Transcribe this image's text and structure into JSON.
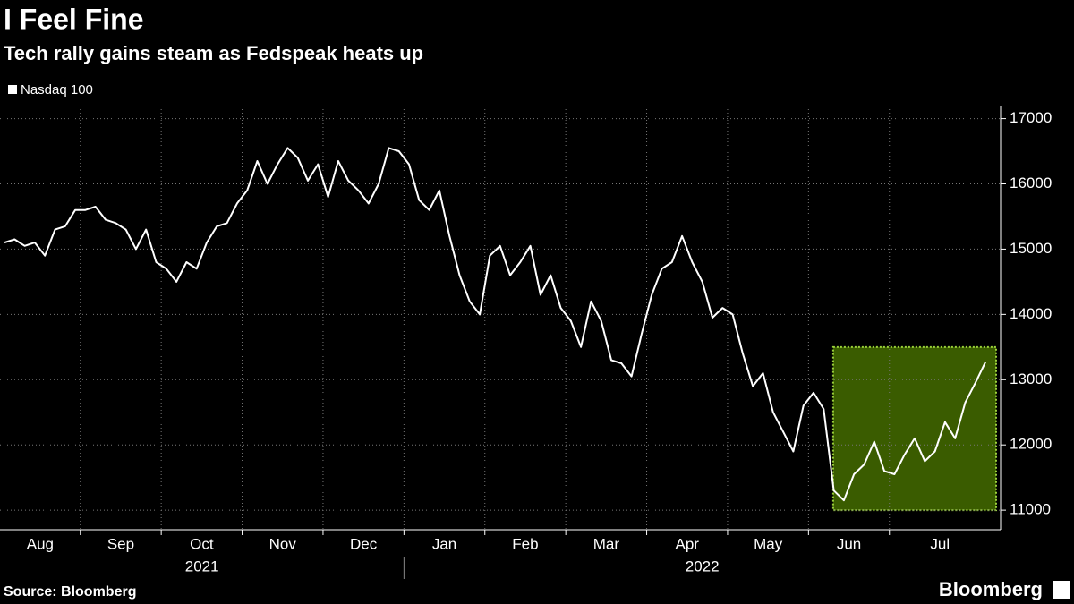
{
  "chart_data": {
    "type": "line",
    "title": "I Feel Fine",
    "subtitle": "Tech rally gains steam as Fedspeak heats up",
    "source": "Source: Bloomberg",
    "brand": "Bloomberg",
    "years": [
      "2021",
      "2022"
    ],
    "categories": [
      "Aug",
      null,
      null,
      null,
      null,
      null,
      null,
      null,
      "Sep",
      null,
      null,
      null,
      null,
      null,
      null,
      null,
      "Oct",
      null,
      null,
      null,
      null,
      null,
      null,
      null,
      "Nov",
      null,
      null,
      null,
      null,
      null,
      null,
      null,
      "Dec",
      null,
      null,
      null,
      null,
      null,
      null,
      null,
      "Jan",
      null,
      null,
      null,
      null,
      null,
      null,
      null,
      "Feb",
      null,
      null,
      null,
      null,
      null,
      null,
      null,
      "Mar",
      null,
      null,
      null,
      null,
      null,
      null,
      null,
      "Apr",
      null,
      null,
      null,
      null,
      null,
      null,
      null,
      "May",
      null,
      null,
      null,
      null,
      null,
      null,
      null,
      "Jun",
      null,
      null,
      null,
      null,
      null,
      null,
      null,
      "Jul",
      null,
      null,
      null,
      null,
      null,
      null,
      null,
      null,
      null
    ],
    "series": [
      {
        "name": "Nasdaq 100",
        "color": "#ffffff",
        "values": [
          15100,
          15150,
          15050,
          15100,
          14900,
          15300,
          15350,
          15600,
          15600,
          15650,
          15450,
          15400,
          15300,
          15000,
          15300,
          14800,
          14700,
          14500,
          14800,
          14700,
          15100,
          15350,
          15400,
          15700,
          15900,
          16350,
          16000,
          16300,
          16550,
          16400,
          16050,
          16300,
          15800,
          16350,
          16050,
          15900,
          15700,
          16000,
          16550,
          16500,
          16300,
          15750,
          15600,
          15900,
          15200,
          14600,
          14200,
          14000,
          14900,
          15050,
          14600,
          14800,
          15050,
          14300,
          14600,
          14100,
          13900,
          13500,
          14200,
          13900,
          13300,
          13250,
          13050,
          13700,
          14300,
          14700,
          14800,
          15200,
          14800,
          14500,
          13950,
          14100,
          14000,
          13400,
          12900,
          13100,
          12500,
          12200,
          11900,
          12600,
          12800,
          12550,
          11300,
          11150,
          11550,
          11700,
          12050,
          11600,
          11550,
          11850,
          12100,
          11750,
          11900,
          12350,
          12100,
          12650,
          12950,
          13270
        ]
      }
    ],
    "highlight": {
      "ylim": [
        11000,
        13500
      ],
      "color": "#3a5c00",
      "border": "#9bd13a"
    },
    "ylim": [
      10700,
      17200
    ],
    "yticks": [
      11000,
      12000,
      13000,
      14000,
      15000,
      16000,
      17000
    ],
    "grid": true
  }
}
